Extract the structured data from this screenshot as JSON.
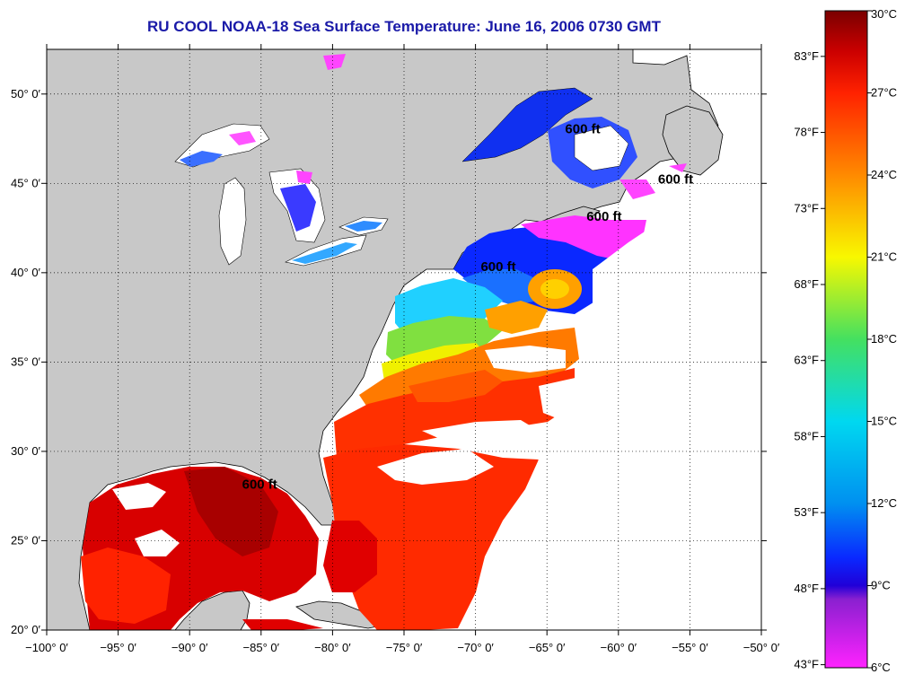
{
  "title": "RU COOL  NOAA-18  Sea Surface Temperature:  June 16, 2006 0730 GMT",
  "map": {
    "lon_range": [
      -100,
      -50
    ],
    "lat_range": [
      20,
      52.5
    ],
    "lon_ticks": [
      {
        "value": -100,
        "label": "−100° 0′"
      },
      {
        "value": -95,
        "label": "−95° 0′"
      },
      {
        "value": -90,
        "label": "−90° 0′"
      },
      {
        "value": -85,
        "label": "−85° 0′"
      },
      {
        "value": -80,
        "label": "−80° 0′"
      },
      {
        "value": -75,
        "label": "−75° 0′"
      },
      {
        "value": -70,
        "label": "−70° 0′"
      },
      {
        "value": -65,
        "label": "−65° 0′"
      },
      {
        "value": -60,
        "label": "−60° 0′"
      },
      {
        "value": -55,
        "label": "−55° 0′"
      },
      {
        "value": -50,
        "label": "−50° 0′"
      }
    ],
    "lat_ticks": [
      {
        "value": 20,
        "label": "20° 0′"
      },
      {
        "value": 25,
        "label": "25° 0′"
      },
      {
        "value": 30,
        "label": "30° 0′"
      },
      {
        "value": 35,
        "label": "35° 0′"
      },
      {
        "value": 40,
        "label": "40° 0′"
      },
      {
        "value": 45,
        "label": "45° 0′"
      },
      {
        "value": 50,
        "label": "50° 0′"
      }
    ],
    "grid": "dotted",
    "land_color": "#c8c8c8",
    "no_data_color": "#ffffff",
    "contour_labels": [
      {
        "text": "600 ft",
        "lon": -62.5,
        "lat": 47.8
      },
      {
        "text": "600 ft",
        "lon": -56.0,
        "lat": 45.0
      },
      {
        "text": "600 ft",
        "lon": -61.0,
        "lat": 42.9
      },
      {
        "text": "600 ft",
        "lon": -68.4,
        "lat": 40.1
      },
      {
        "text": "600 ft",
        "lon": -85.1,
        "lat": 27.9
      }
    ]
  },
  "colorbar": {
    "celsius_labels": [
      {
        "value": 30,
        "label": "30°C"
      },
      {
        "value": 27,
        "label": "27°C"
      },
      {
        "value": 24,
        "label": "24°C"
      },
      {
        "value": 21,
        "label": "21°C"
      },
      {
        "value": 18,
        "label": "18°C"
      },
      {
        "value": 15,
        "label": "15°C"
      },
      {
        "value": 12,
        "label": "12°C"
      },
      {
        "value": 9,
        "label": "9°C"
      },
      {
        "value": 6,
        "label": "6°C"
      }
    ],
    "fahrenheit_labels": [
      {
        "value": 83,
        "label": "83°F"
      },
      {
        "value": 78,
        "label": "78°F"
      },
      {
        "value": 73,
        "label": "73°F"
      },
      {
        "value": 68,
        "label": "68°F"
      },
      {
        "value": 63,
        "label": "63°F"
      },
      {
        "value": 58,
        "label": "58°F"
      },
      {
        "value": 53,
        "label": "53°F"
      },
      {
        "value": 48,
        "label": "48°F"
      },
      {
        "value": 43,
        "label": "43°F"
      }
    ],
    "stops": [
      {
        "c": 30,
        "color": "#7a0000"
      },
      {
        "c": 28.5,
        "color": "#cc0000"
      },
      {
        "c": 27,
        "color": "#ff2200"
      },
      {
        "c": 24,
        "color": "#ff8a00"
      },
      {
        "c": 21,
        "color": "#f8f800"
      },
      {
        "c": 18,
        "color": "#44e060"
      },
      {
        "c": 15,
        "color": "#00d8f0"
      },
      {
        "c": 12,
        "color": "#0090f0"
      },
      {
        "c": 10,
        "color": "#0a28ff"
      },
      {
        "c": 9,
        "color": "#2000d8"
      },
      {
        "c": 8.5,
        "color": "#8a20d0"
      },
      {
        "c": 6,
        "color": "#ff22ff"
      }
    ]
  }
}
